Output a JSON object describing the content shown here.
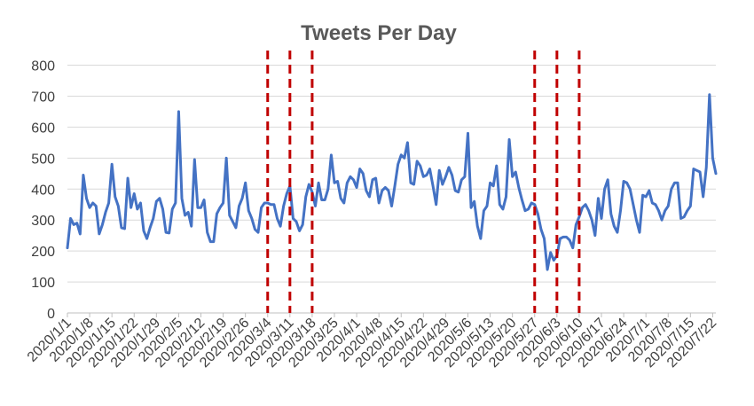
{
  "chart_data": {
    "type": "line",
    "title": "Tweets Per Day",
    "xlabel": "",
    "ylabel": "",
    "ylim": [
      0,
      800
    ],
    "y_ticks": [
      0,
      100,
      200,
      300,
      400,
      500,
      600,
      700,
      800
    ],
    "grid": "horizontal",
    "legend": "none",
    "x_tick_labels": [
      "2020/1/1",
      "2020/1/8",
      "2020/1/15",
      "2020/1/22",
      "2020/1/29",
      "2020/2/5",
      "2020/2/12",
      "2020/2/19",
      "2020/2/26",
      "2020/3/4",
      "2020/3/11",
      "2020/3/18",
      "2020/3/25",
      "2020/4/1",
      "2020/4/8",
      "2020/4/15",
      "2020/4/22",
      "2020/4/29",
      "2020/5/6",
      "2020/5/13",
      "2020/5/20",
      "2020/5/27",
      "2020/6/3",
      "2020/6/10",
      "2020/6/17",
      "2020/6/24",
      "2020/7/1",
      "2020/7/8",
      "2020/7/15",
      "2020/7/22"
    ],
    "x_tick_days": [
      0,
      7,
      14,
      21,
      28,
      35,
      42,
      49,
      56,
      63,
      70,
      77,
      84,
      91,
      98,
      105,
      112,
      119,
      126,
      133,
      140,
      147,
      154,
      161,
      168,
      175,
      182,
      189,
      196,
      203
    ],
    "series": [
      {
        "color": "#4472c4",
        "x_start": "2020/1/1",
        "values": [
          210,
          305,
          285,
          290,
          255,
          445,
          370,
          340,
          355,
          345,
          255,
          285,
          325,
          355,
          480,
          375,
          345,
          275,
          272,
          435,
          340,
          385,
          335,
          355,
          265,
          240,
          275,
          305,
          360,
          370,
          335,
          260,
          258,
          335,
          355,
          650,
          370,
          315,
          325,
          280,
          495,
          340,
          340,
          365,
          260,
          230,
          230,
          320,
          340,
          355,
          500,
          315,
          295,
          275,
          345,
          370,
          420,
          330,
          305,
          270,
          260,
          340,
          355,
          355,
          350,
          350,
          305,
          280,
          345,
          385,
          410,
          305,
          295,
          265,
          285,
          375,
          415,
          390,
          345,
          420,
          365,
          365,
          400,
          510,
          420,
          425,
          370,
          355,
          420,
          440,
          430,
          405,
          465,
          450,
          395,
          375,
          430,
          435,
          355,
          395,
          405,
          395,
          345,
          410,
          480,
          510,
          500,
          550,
          420,
          415,
          490,
          475,
          440,
          445,
          465,
          410,
          350,
          460,
          415,
          440,
          470,
          445,
          395,
          390,
          430,
          440,
          580,
          340,
          360,
          280,
          240,
          330,
          345,
          420,
          410,
          475,
          350,
          335,
          375,
          560,
          440,
          455,
          405,
          365,
          330,
          335,
          355,
          350,
          320,
          270,
          240,
          140,
          195,
          170,
          185,
          240,
          245,
          245,
          235,
          210,
          285,
          310,
          340,
          350,
          330,
          300,
          250,
          370,
          305,
          400,
          430,
          320,
          280,
          260,
          330,
          425,
          420,
          400,
          350,
          300,
          260,
          380,
          375,
          395,
          355,
          350,
          330,
          300,
          330,
          345,
          400,
          420,
          420,
          305,
          310,
          330,
          345,
          465,
          460,
          455,
          375,
          470,
          705,
          500,
          450
        ]
      }
    ],
    "annotations": {
      "vertical_dashed_lines_at": [
        "2020/3/4",
        "2020/3/11",
        "2020/3/18",
        "2020/5/27",
        "2020/6/3",
        "2020/6/10"
      ],
      "line_color": "#c00000"
    },
    "axis_color": "#bfbfbf",
    "grid_color": "#d9d9d9"
  }
}
